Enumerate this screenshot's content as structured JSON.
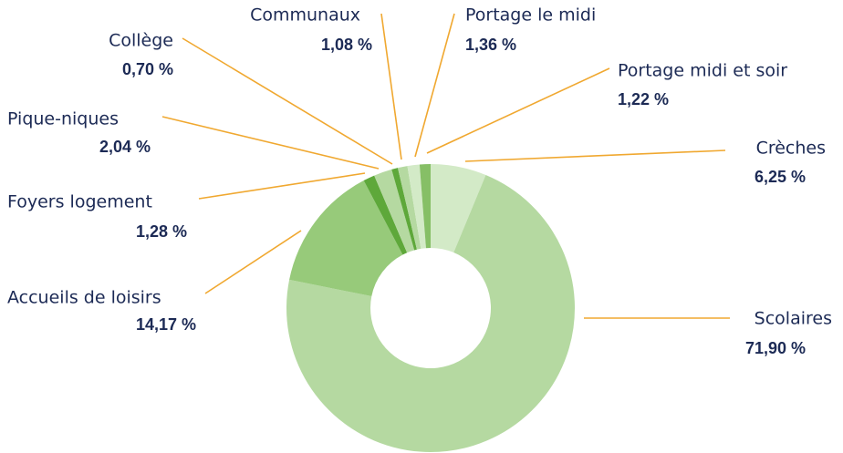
{
  "chart_data": {
    "type": "pie",
    "donut": true,
    "categories": [
      "Crèches",
      "Scolaires",
      "Accueils de loisirs",
      "Foyers logement",
      "Pique-niques",
      "Collège",
      "Communaux",
      "Portage le midi",
      "Portage midi et soir"
    ],
    "values": [
      6.25,
      71.9,
      14.17,
      1.28,
      2.04,
      0.7,
      1.08,
      1.36,
      1.22
    ],
    "value_labels": [
      "6,25 %",
      "71,90 %",
      "14,17 %",
      "1,28 %",
      "2,04 %",
      "0,70 %",
      "1,08 %",
      "1,36 %",
      "1,22 %"
    ],
    "colors": [
      "#d3eac7",
      "#b5d9a1",
      "#97ca7a",
      "#5ea83a",
      "#b5d9a1",
      "#5ea83a",
      "#b5d9a1",
      "#d3eac7",
      "#86bf66"
    ]
  }
}
